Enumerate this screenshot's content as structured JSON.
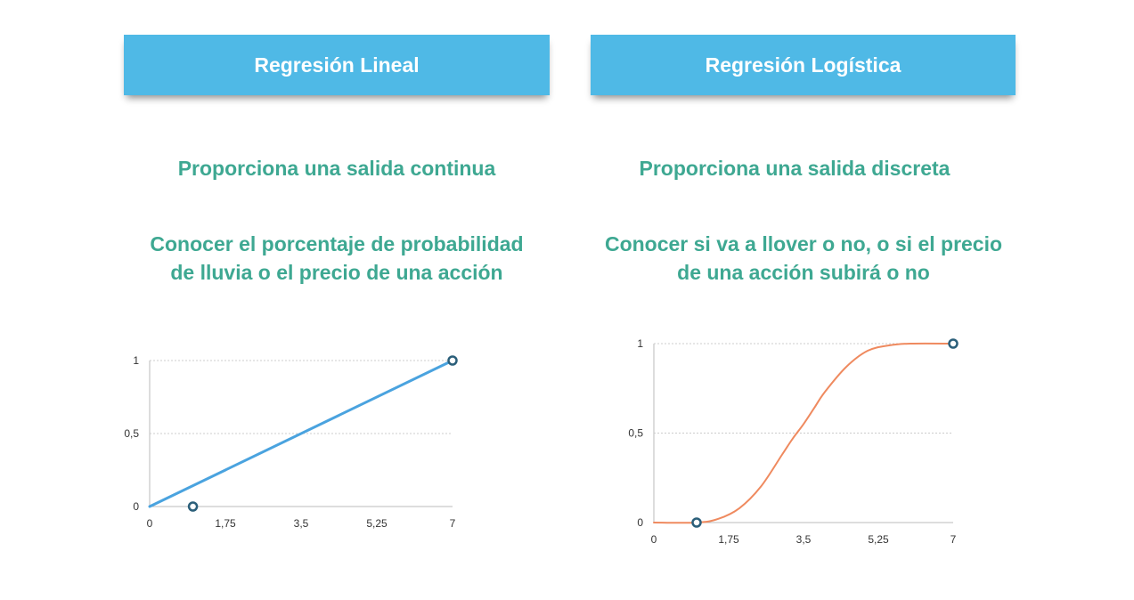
{
  "left": {
    "header": "Regresión Lineal",
    "subtitle": "Proporciona una salida continua",
    "desc_line1": "Conocer el porcentaje de probabilidad",
    "desc_line2": "de lluvia o el precio de una acción"
  },
  "right": {
    "header": "Regresión Logística",
    "subtitle": "Proporciona una salida discreta",
    "desc_line1": "Conocer si va a llover o no, o si el precio",
    "desc_line2": "de una acción subirá o no"
  },
  "colors": {
    "banner": "#4fb9e6",
    "text": "#3ea892",
    "linear_line": "#4aa3df",
    "logistic_curve": "#ef8a5f",
    "marker": "#2b5f7a"
  },
  "chart_data": [
    {
      "type": "line",
      "x_ticks": [
        "0",
        "1,75",
        "3,5",
        "5,25",
        "7"
      ],
      "y_ticks": [
        "0",
        "0,5",
        "1"
      ],
      "xlim": [
        0,
        7
      ],
      "ylim": [
        0,
        1
      ],
      "grid": true,
      "series": [
        {
          "x": [
            0,
            7
          ],
          "y": [
            0,
            1
          ]
        }
      ],
      "markers": [
        {
          "x": 1,
          "y": 0
        },
        {
          "x": 7,
          "y": 1
        }
      ]
    },
    {
      "type": "line",
      "x_ticks": [
        "0",
        "1,75",
        "3,5",
        "5,25",
        "7"
      ],
      "y_ticks": [
        "0",
        "0,5",
        "1"
      ],
      "xlim": [
        0,
        7
      ],
      "ylim": [
        0,
        1
      ],
      "grid": true,
      "series": [
        {
          "x": [
            0,
            1,
            1.5,
            2,
            2.5,
            3,
            3.25,
            3.5,
            3.75,
            4,
            4.5,
            5,
            5.5,
            6,
            7
          ],
          "y": [
            0,
            0,
            0.02,
            0.08,
            0.2,
            0.38,
            0.47,
            0.55,
            0.64,
            0.73,
            0.87,
            0.96,
            0.99,
            1,
            1
          ]
        }
      ],
      "markers": [
        {
          "x": 1,
          "y": 0
        },
        {
          "x": 7,
          "y": 1
        }
      ]
    }
  ]
}
